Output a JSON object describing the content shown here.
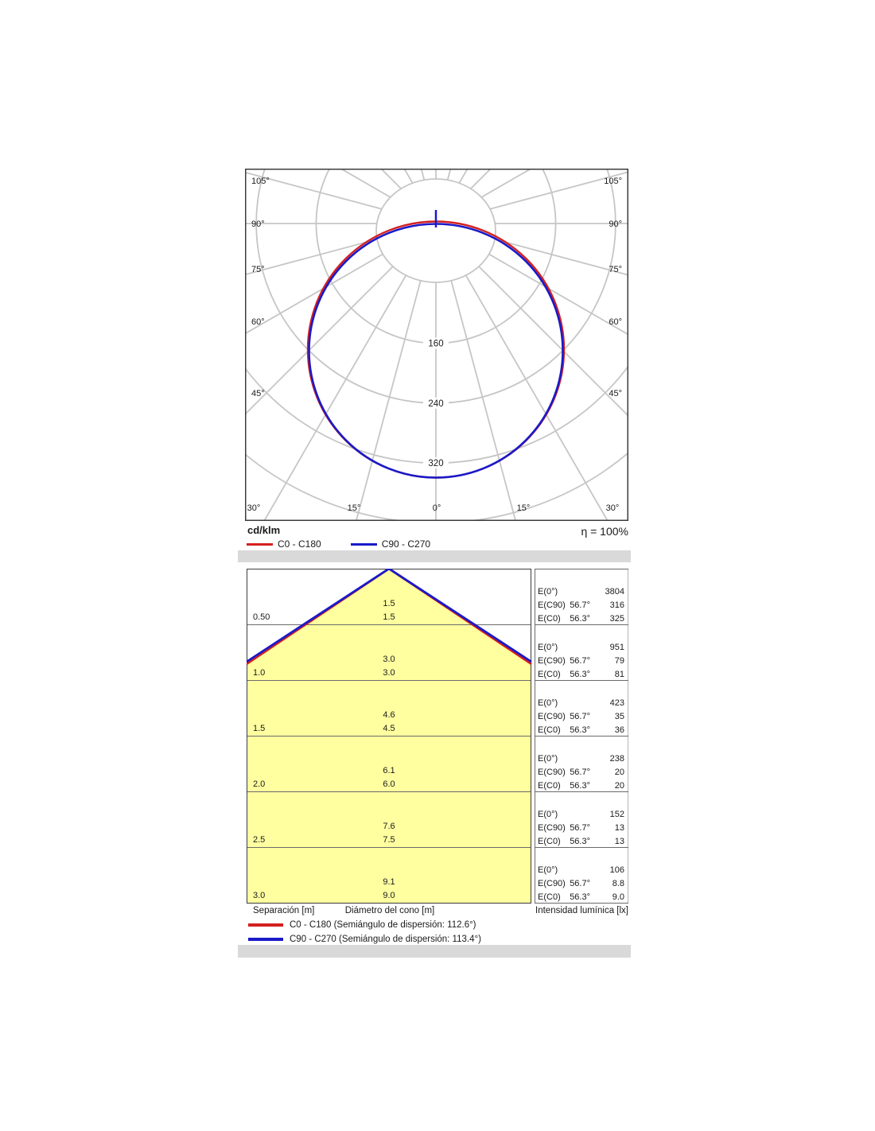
{
  "colors": {
    "accent_red": "#d42020",
    "accent_blue": "#1a1ac8",
    "cone_fill": "#ffffa0",
    "grid_gray": "#c6c6c6",
    "band_gray": "#d9d9d9",
    "box_border": "#3c3c3c",
    "row_border": "#6a6a6a"
  },
  "chart_data": [
    {
      "type": "polar-intensity",
      "unit_label": "cd/klm",
      "efficiency_label": "η = 100%",
      "series": [
        {
          "name": "C0 - C180",
          "color": "#d42020",
          "shape": "cosine",
          "max_cd_per_klm": 340
        },
        {
          "name": "C90 - C270",
          "color": "#1a1ac8",
          "shape": "cosine",
          "max_cd_per_klm": 340
        }
      ],
      "ring_values": [
        80,
        160,
        240,
        320,
        400
      ],
      "ring_labels": [
        "160",
        "240",
        "320"
      ],
      "angle_labels_side": [
        "105°",
        "90°",
        "75°",
        "60°",
        "45°"
      ],
      "angle_labels_bottom": [
        "30°",
        "15°",
        "0°",
        "15°",
        "30°"
      ],
      "angle_step_deg": 15
    },
    {
      "type": "cone-diagram",
      "rows": [
        {
          "separation": "0.50",
          "d_c90": "1.5",
          "d_c0": "1.5",
          "e0": "3804",
          "ec90": "316",
          "ec0": "325"
        },
        {
          "separation": "1.0",
          "d_c90": "3.0",
          "d_c0": "3.0",
          "e0": "951",
          "ec90": "79",
          "ec0": "81"
        },
        {
          "separation": "1.5",
          "d_c90": "4.6",
          "d_c0": "4.5",
          "e0": "423",
          "ec90": "35",
          "ec0": "36"
        },
        {
          "separation": "2.0",
          "d_c90": "6.1",
          "d_c0": "6.0",
          "e0": "238",
          "ec90": "20",
          "ec0": "20"
        },
        {
          "separation": "2.5",
          "d_c90": "7.6",
          "d_c0": "7.5",
          "e0": "152",
          "ec90": "13",
          "ec0": "13"
        },
        {
          "separation": "3.0",
          "d_c90": "9.1",
          "d_c0": "9.0",
          "e0": "106",
          "ec90": "8.8",
          "ec0": "9.0"
        }
      ],
      "e_labels": {
        "e0": "E(0°)",
        "ec90": "E(C90)",
        "ec0": "E(C0)",
        "angle_c90": "56.7°",
        "angle_c0": "56.3°"
      },
      "footer": {
        "separation": "Separación [m]",
        "diameter": "Diámetro del cono [m]",
        "intensity": "Intensidad lumínica [lx]"
      },
      "legend": [
        {
          "label": "C0 - C180 (Semiángulo de dispersión: 112.6°)",
          "color": "#d42020"
        },
        {
          "label": "C90 - C270 (Semiángulo de dispersión: 113.4°)",
          "color": "#1a1ac8"
        }
      ]
    }
  ]
}
